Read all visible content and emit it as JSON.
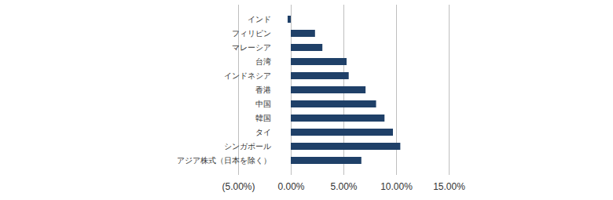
{
  "chart_data": {
    "type": "bar",
    "orientation": "horizontal",
    "categories": [
      "インド",
      "フィリピン",
      "マレーシア",
      "台湾",
      "インドネシア",
      "香港",
      "中国",
      "韓国",
      "タイ",
      "シンガポール",
      "アジア株式（日本を除く）"
    ],
    "values": [
      -0.3,
      2.3,
      3.0,
      5.3,
      5.5,
      7.1,
      8.1,
      8.9,
      9.7,
      10.4,
      6.7
    ],
    "color": "#1f4068",
    "xlim": [
      -5,
      15
    ],
    "xticks": [
      {
        "value": -5,
        "label": "(5.00%)"
      },
      {
        "value": 0,
        "label": "0.00%"
      },
      {
        "value": 5,
        "label": "5.00%"
      },
      {
        "value": 10,
        "label": "10.00%"
      },
      {
        "value": 15,
        "label": "15.00%"
      }
    ],
    "grid": true
  }
}
